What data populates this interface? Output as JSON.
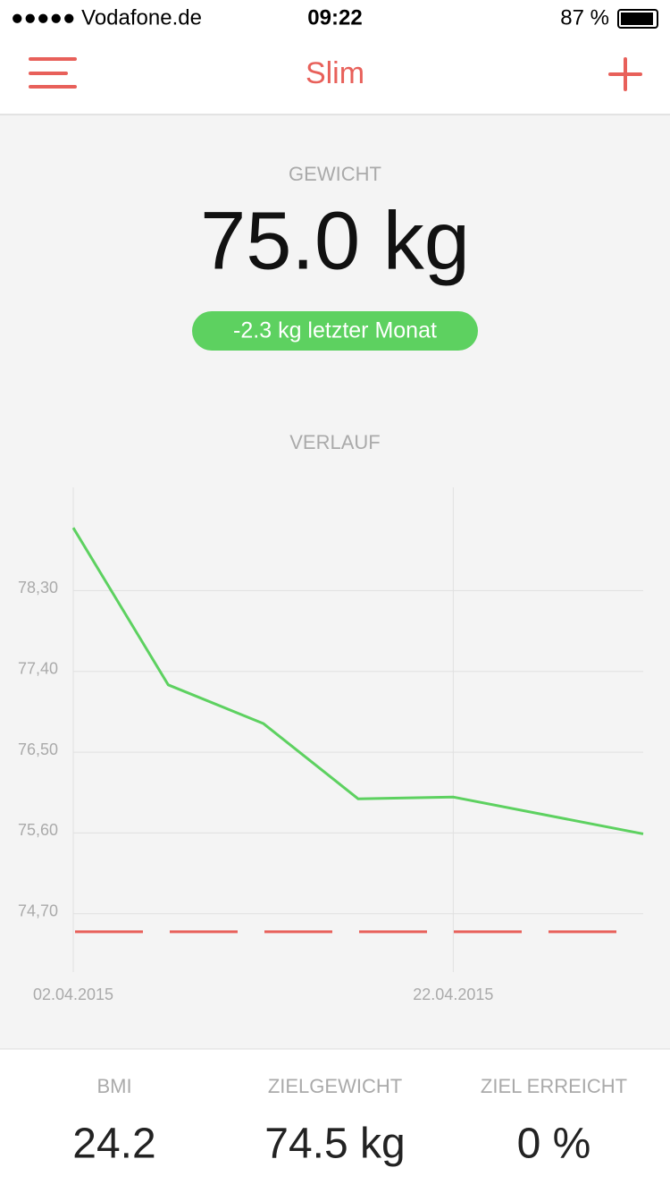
{
  "status_bar": {
    "carrier": "●●●●● Vodafone.de",
    "time": "09:22",
    "battery": "87 %"
  },
  "nav": {
    "title": "Slim"
  },
  "weight": {
    "label": "GEWICHT",
    "value": "75.0 kg",
    "change": "-2.3 kg letzter Monat"
  },
  "chart_data": {
    "type": "line",
    "title": "VERLAUF",
    "x": [
      "02.04.2015",
      "07.04.2015",
      "12.04.2015",
      "17.04.2015",
      "22.04.2015",
      "02.05.2015"
    ],
    "series": [
      {
        "color": "#5dd160",
        "values": [
          79.0,
          77.25,
          76.82,
          75.98,
          76.0,
          75.59
        ]
      }
    ],
    "goal": 74.5,
    "goal_color": "#e8605a",
    "xlim": [
      "02.04.2015",
      "02.05.2015"
    ],
    "xticks": [
      "02.04.2015",
      "22.04.2015"
    ],
    "ylim": [
      74.05,
      79.45
    ],
    "yticks": [
      {
        "value": 74.7,
        "label": "74,70"
      },
      {
        "value": 75.6,
        "label": "75,60"
      },
      {
        "value": 76.5,
        "label": "76,50"
      },
      {
        "value": 77.4,
        "label": "77,40"
      },
      {
        "value": 78.3,
        "label": "78,30"
      }
    ],
    "grid": true
  },
  "stats": [
    {
      "label": "BMI",
      "value": "24.2"
    },
    {
      "label": "ZIELGEWICHT",
      "value": "74.5 kg"
    },
    {
      "label": "ZIEL ERREICHT",
      "value": "0 %"
    }
  ]
}
